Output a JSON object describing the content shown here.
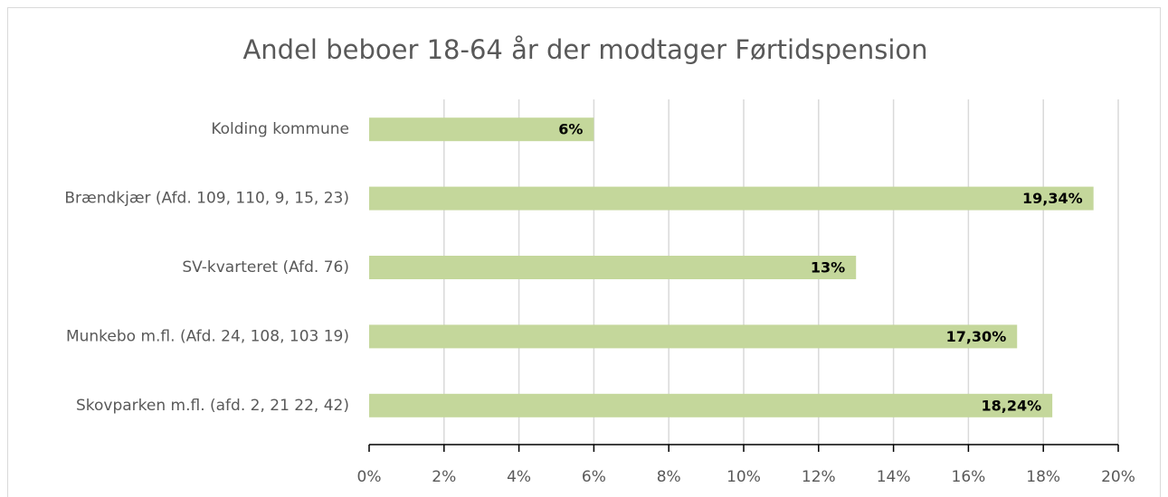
{
  "chart_data": {
    "type": "bar",
    "orientation": "horizontal",
    "title": "Andel beboer 18-64 år der modtager Førtidspension",
    "categories": [
      "Kolding kommune",
      "Brændkjær (Afd. 109, 110, 9, 15, 23)",
      "SV-kvarteret (Afd. 76)",
      "Munkebo m.fl. (Afd. 24, 108, 103 19)",
      "Skovparken m.fl. (afd. 2, 21 22, 42)"
    ],
    "values": [
      6,
      19.34,
      13,
      17.3,
      18.24
    ],
    "value_labels": [
      "6%",
      "19,34%",
      "13%",
      "17,30%",
      "18,24%"
    ],
    "color": "#c4d79b",
    "xlim": [
      0,
      20
    ],
    "xticks": [
      {
        "value": 0,
        "label": "0%"
      },
      {
        "value": 2,
        "label": "2%"
      },
      {
        "value": 4,
        "label": "4%"
      },
      {
        "value": 6,
        "label": "6%"
      },
      {
        "value": 8,
        "label": "8%"
      },
      {
        "value": 10,
        "label": "10%"
      },
      {
        "value": 12,
        "label": "12%"
      },
      {
        "value": 14,
        "label": "14%"
      },
      {
        "value": 16,
        "label": "16%"
      },
      {
        "value": 18,
        "label": "18%"
      },
      {
        "value": 20,
        "label": "20%"
      }
    ],
    "grid": true
  }
}
